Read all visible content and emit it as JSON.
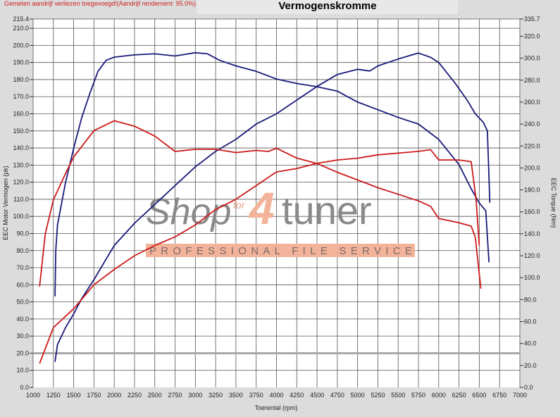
{
  "notice": "Gemeten aandrijf verliezen toegevoegd!(Aandrijf rendement: 95.0%)",
  "watermark": {
    "brand": "Shop",
    "for": "for",
    "four": "4",
    "tuner": "tuner",
    "tagline": "PROFESSIONAL FILE SERVICE"
  },
  "chart_data": {
    "type": "line",
    "title": "Vermogenskromme",
    "xlabel": "Toerental (rpm)",
    "ylabel": "EEC Motor Vermogen (pk)",
    "y2label": "EEC Torque (Nm)",
    "xlim": [
      1000,
      7000
    ],
    "ylim": [
      0,
      215.4
    ],
    "y2lim": [
      0,
      335.7
    ],
    "xticks": [
      1000,
      1250,
      1500,
      1750,
      2000,
      2250,
      2500,
      2750,
      3000,
      3250,
      3500,
      3750,
      4000,
      4250,
      4500,
      4750,
      5000,
      5250,
      5500,
      5750,
      6000,
      6250,
      6500,
      6750,
      7000
    ],
    "yticks": [
      "0.0",
      "10.0",
      "20.0",
      "30.0",
      "40.0",
      "50.0",
      "60.0",
      "70.0",
      "80.0",
      "90.0",
      "100.0",
      "110.0",
      "120.0",
      "130.0",
      "140.0",
      "150.0",
      "160.0",
      "170.0",
      "180.0",
      "190.0",
      "200.0",
      "210.0",
      "215.4"
    ],
    "y2ticks": [
      "0.0",
      "20.0",
      "40.0",
      "60.0",
      "80.0",
      "100.0",
      "120.0",
      "140.0",
      "160.0",
      "180.0",
      "200.0",
      "220.0",
      "240.0",
      "260.0",
      "280.0",
      "300.0",
      "320.0",
      "335.7"
    ],
    "reference_line_y": 20,
    "grid": true,
    "colors": {
      "blue": "#1a1a7a",
      "red": "#cc1a1a",
      "reference": "#a8a8a8"
    },
    "series": [
      {
        "axis": "left",
        "color": "#1a1a7a",
        "x": [
          1270,
          1300,
          1400,
          1500,
          1600,
          1750,
          1900,
          2000,
          2250,
          2500,
          2750,
          3000,
          3250,
          3500,
          3750,
          4000,
          4250,
          4500,
          4750,
          5000,
          5150,
          5250,
          5500,
          5750,
          5900,
          6000,
          6200,
          6350,
          6450,
          6550,
          6600,
          6630
        ],
        "y": [
          15,
          25,
          35,
          43,
          52,
          63,
          75,
          83,
          96,
          107,
          118,
          129,
          138,
          145,
          154,
          160,
          168,
          176,
          183,
          186,
          185,
          188,
          192,
          195.5,
          193,
          190,
          178,
          168,
          160,
          155,
          150,
          108
        ]
      },
      {
        "axis": "right",
        "color": "#1a1a7a",
        "x": [
          1270,
          1280,
          1300,
          1400,
          1500,
          1600,
          1700,
          1800,
          1900,
          2000,
          2250,
          2500,
          2750,
          3000,
          3150,
          3300,
          3500,
          3750,
          4000,
          4250,
          4500,
          4750,
          5000,
          5250,
          5500,
          5750,
          6000,
          6250,
          6400,
          6500,
          6580,
          6620
        ],
        "y": [
          83,
          125,
          148,
          187,
          218,
          246,
          268,
          288,
          298,
          301,
          303,
          304,
          302,
          305,
          304,
          298,
          293,
          288,
          281,
          277,
          274,
          270,
          260,
          253,
          246,
          240,
          226,
          203,
          181,
          168,
          161,
          114
        ]
      },
      {
        "axis": "right",
        "color": "#cc1a1a",
        "x": [
          1080,
          1150,
          1250,
          1400,
          1500,
          1750,
          2000,
          2250,
          2500,
          2750,
          3000,
          3250,
          3500,
          3750,
          3900,
          4000,
          4250,
          4500,
          4750,
          5000,
          5250,
          5500,
          5750,
          5900,
          6000,
          6250,
          6400,
          6450,
          6520
        ],
        "y": [
          92,
          140,
          171,
          195,
          210,
          234,
          243,
          238,
          229,
          215,
          217,
          217,
          214,
          216,
          215,
          218,
          209,
          204,
          196,
          189,
          182,
          176,
          170,
          165,
          154,
          150,
          147,
          137,
          90
        ]
      },
      {
        "axis": "left",
        "color": "#cc1a1a",
        "x": [
          1080,
          1250,
          1500,
          1750,
          2000,
          2250,
          2500,
          2750,
          3000,
          3250,
          3500,
          3750,
          4000,
          4250,
          4500,
          4750,
          5000,
          5250,
          5500,
          5750,
          5900,
          6000,
          6250,
          6400,
          6460,
          6500
        ],
        "y": [
          14,
          35,
          46,
          60,
          69,
          77,
          83,
          88,
          95,
          104,
          110,
          118,
          126,
          128,
          131,
          133,
          134,
          136,
          137,
          138,
          139,
          133,
          133,
          132,
          110,
          83
        ]
      }
    ]
  }
}
